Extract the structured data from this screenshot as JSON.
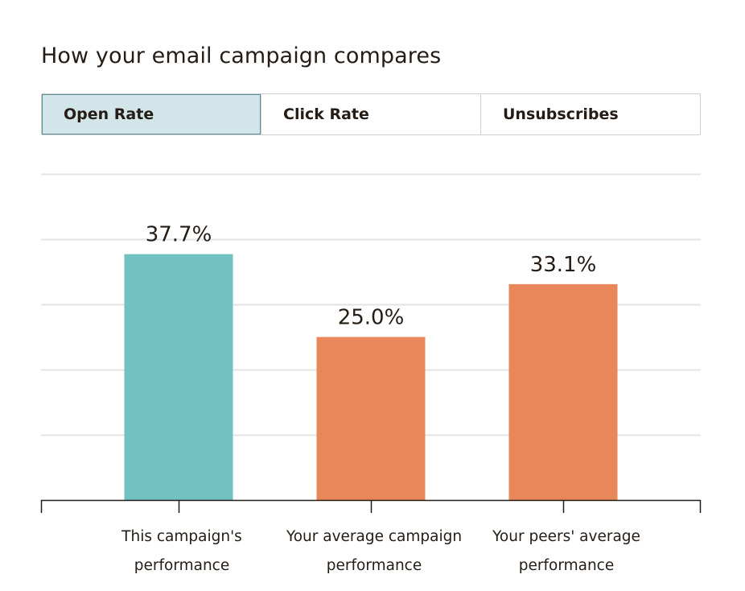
{
  "header": {
    "title": "How your email campaign compares"
  },
  "tabs": [
    {
      "label": "Open Rate",
      "active": true
    },
    {
      "label": "Click Rate",
      "active": false
    },
    {
      "label": "Unsubscribes",
      "active": false
    }
  ],
  "colors": {
    "highlight_bar": "#72c2c2",
    "comparison_bar": "#e8875a",
    "gridline": "#e3e3e3",
    "axis": "#241c15"
  },
  "chart_data": {
    "type": "bar",
    "categories": [
      [
        "This campaign's",
        "performance"
      ],
      [
        "Your average campaign",
        "performance"
      ],
      [
        "Your peers' average",
        "performance"
      ]
    ],
    "values": [
      37.7,
      25.0,
      33.1
    ],
    "value_labels": [
      "37.7%",
      "25.0%",
      "33.1%"
    ],
    "bar_colors": [
      "#72c2c2",
      "#e8875a",
      "#e8875a"
    ],
    "ylim": [
      0,
      50
    ],
    "gridlines": [
      10,
      20,
      30,
      40,
      50
    ],
    "grid": true,
    "legend": "none"
  }
}
